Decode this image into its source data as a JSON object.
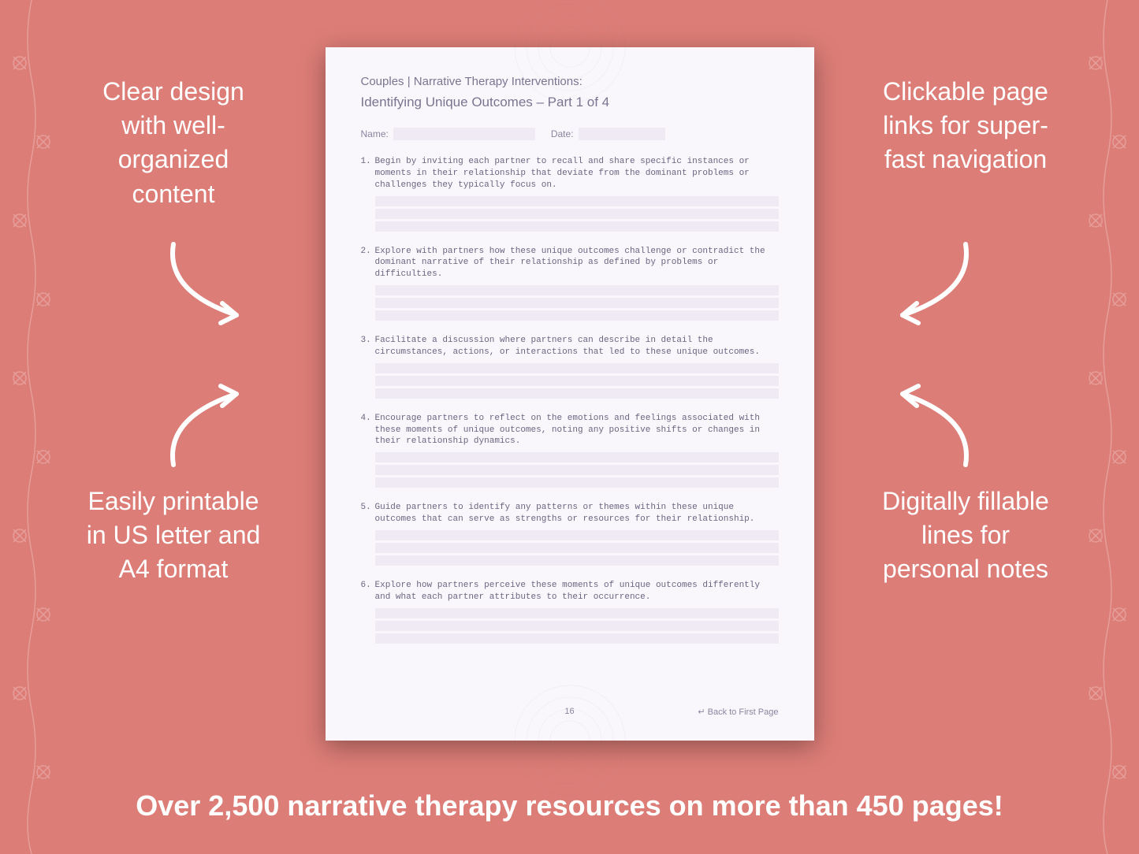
{
  "background_color": "#dd7d77",
  "callouts": {
    "top_left": "Clear design with well-organized content",
    "top_right": "Clickable page links for super-fast navigation",
    "bottom_left": "Easily printable in US letter and A4 format",
    "bottom_right": "Digitally fillable lines for personal notes"
  },
  "bottom_banner": "Over 2,500 narrative therapy resources on more than 450 pages!",
  "document": {
    "background_color": "#faf7fc",
    "fill_line_color": "#f0eaf5",
    "text_color": "#6a6580",
    "header_line1": "Couples | Narrative Therapy Interventions:",
    "header_line2": "Identifying Unique Outcomes – Part 1 of 4",
    "name_label": "Name:",
    "date_label": "Date:",
    "questions": [
      {
        "num": "1.",
        "text": "Begin by inviting each partner to recall and share specific instances or moments in their relationship that deviate from the dominant problems or challenges they typically focus on."
      },
      {
        "num": "2.",
        "text": "Explore with partners how these unique outcomes challenge or contradict the dominant narrative of their relationship as defined by problems or difficulties."
      },
      {
        "num": "3.",
        "text": "Facilitate a discussion where partners can describe in detail the circumstances, actions, or interactions that led to these unique outcomes."
      },
      {
        "num": "4.",
        "text": "Encourage partners to reflect on the emotions and feelings associated with these moments of unique outcomes, noting any positive shifts or changes in their relationship dynamics."
      },
      {
        "num": "5.",
        "text": "Guide partners to identify any patterns or themes within these unique outcomes that can serve as strengths or resources for their relationship."
      },
      {
        "num": "6.",
        "text": "Explore how partners perceive these moments of unique outcomes differently and what each partner attributes to their occurrence."
      }
    ],
    "page_number": "16",
    "back_link": "↵ Back to First Page"
  },
  "style": {
    "callout_color": "#ffffff",
    "callout_fontsize": 32,
    "banner_fontsize": 36,
    "arrow_color": "#ffffff",
    "arrow_stroke_width": 6
  }
}
